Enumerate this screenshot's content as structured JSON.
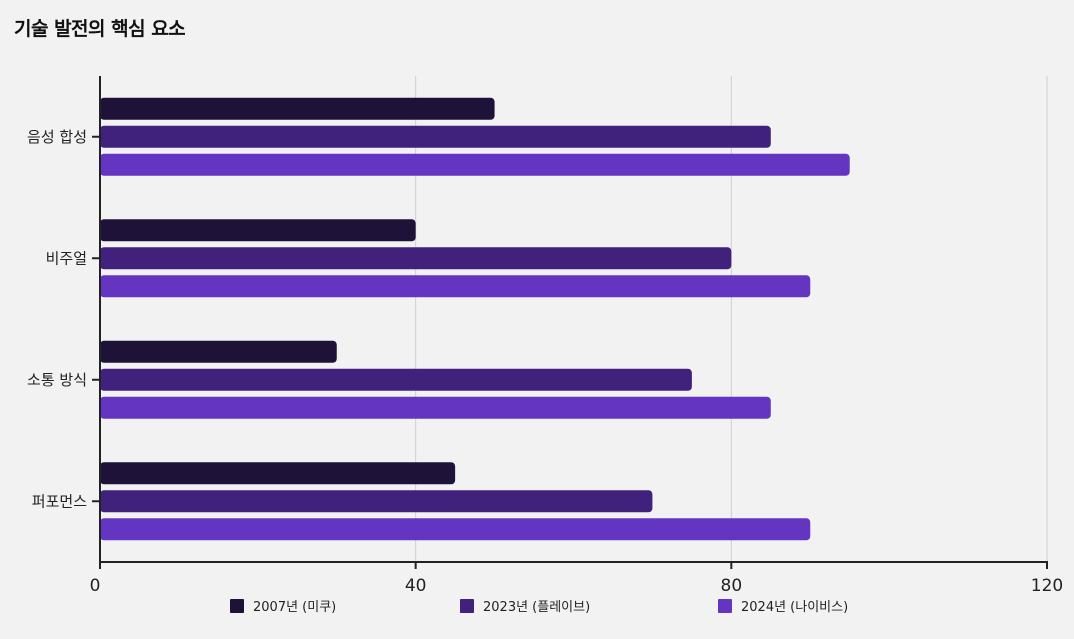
{
  "chart_data": {
    "type": "bar",
    "orientation": "horizontal",
    "title": "기술 발전의 핵심 요소",
    "categories": [
      "음성 합성",
      "비주얼",
      "소통 방식",
      "퍼포먼스"
    ],
    "series": [
      {
        "name": "2007년 (미쿠)",
        "color": "#1e1238",
        "values": [
          50,
          40,
          30,
          45
        ]
      },
      {
        "name": "2023년 (플레이브)",
        "color": "#40217b",
        "values": [
          85,
          80,
          75,
          70
        ]
      },
      {
        "name": "2024년 (나이비스)",
        "color": "#6435c1",
        "values": [
          95,
          90,
          85,
          90
        ]
      }
    ],
    "xlim": [
      0,
      120
    ],
    "xticks": [
      0,
      40,
      80,
      120
    ],
    "xlabel": "",
    "ylabel": "",
    "grid": "vertical",
    "legend_position": "bottom"
  }
}
